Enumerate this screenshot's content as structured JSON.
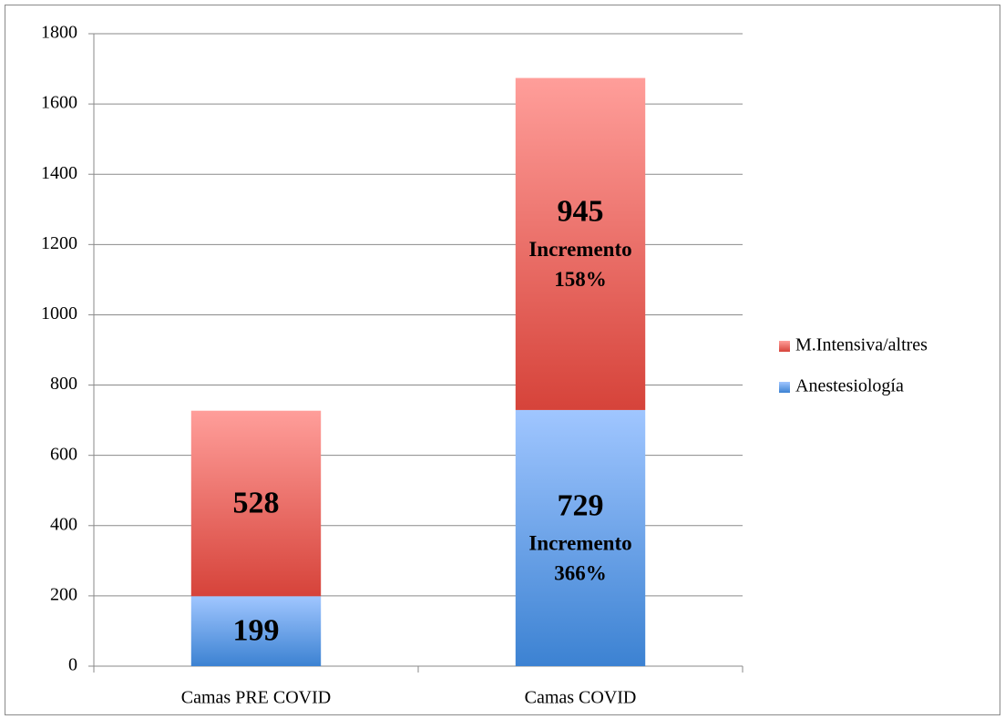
{
  "chart_data": {
    "type": "stacked_bar",
    "categories": [
      "Camas PRE COVID",
      "Camas COVID"
    ],
    "series": [
      {
        "name": "Anestesiología",
        "color": "#5b9bd5",
        "values": [
          199,
          729
        ]
      },
      {
        "name": "M.Intensiva/altres",
        "color": "#e5564b",
        "values": [
          528,
          945
        ]
      }
    ],
    "annotations": [
      [
        "Incremento",
        "158%"
      ],
      [
        "Incremento",
        "366%"
      ]
    ],
    "ylim": [
      0,
      1800
    ],
    "yticks": [
      0,
      200,
      400,
      600,
      800,
      1000,
      1200,
      1400,
      1600,
      1800
    ],
    "grid": true,
    "legend": "right"
  }
}
